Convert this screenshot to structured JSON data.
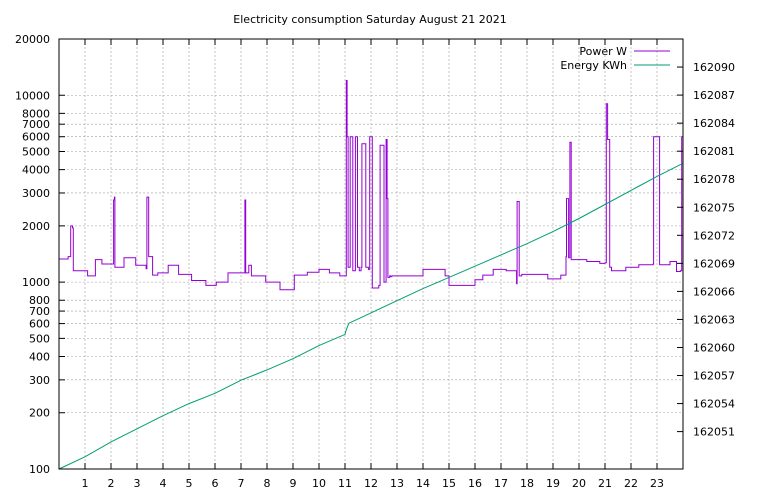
{
  "chart_data": {
    "type": "line",
    "title": "Electricity consumption Saturday August 21 2021",
    "xlabel": "",
    "ylabel": "",
    "y2label": "",
    "grid": true,
    "legend_position": "top-right",
    "xlim": [
      0,
      24
    ],
    "ylim": [
      100,
      20000
    ],
    "y_scale": "log",
    "y2lim": [
      162047,
      162093
    ],
    "x_ticks": [
      1,
      2,
      3,
      4,
      5,
      6,
      7,
      8,
      9,
      10,
      11,
      12,
      13,
      14,
      15,
      16,
      17,
      18,
      19,
      20,
      21,
      22,
      23
    ],
    "x_tick_labels": [
      "1",
      "2",
      "3",
      "4",
      "5",
      "6",
      "7",
      "8",
      "9",
      "10",
      "11",
      "12",
      "13",
      "14",
      "15",
      "16",
      "17",
      "18",
      "19",
      "20",
      "21",
      "22",
      "23"
    ],
    "y_ticks": [
      100,
      200,
      300,
      400,
      500,
      600,
      700,
      800,
      1000,
      2000,
      3000,
      4000,
      5000,
      6000,
      7000,
      8000,
      10000,
      20000
    ],
    "y_tick_labels": [
      "100",
      "200",
      "300",
      "400",
      "500",
      "600",
      "700",
      "800",
      "1000",
      "2000",
      "3000",
      "4000",
      "5000",
      "6000",
      "7000",
      "8000",
      "10000",
      "20000"
    ],
    "y2_ticks": [
      162051,
      162054,
      162057,
      162060,
      162063,
      162066,
      162069,
      162072,
      162075,
      162078,
      162081,
      162084,
      162087,
      162090
    ],
    "y2_tick_labels": [
      "162051",
      "162054",
      "162057",
      "162060",
      "162063",
      "162066",
      "162069",
      "162072",
      "162075",
      "162078",
      "162081",
      "162084",
      "162087",
      "162090"
    ],
    "series": [
      {
        "name": "Power W",
        "axis": "y",
        "color": "#9400d3",
        "step": true,
        "x": [
          0,
          0.35,
          0.45,
          0.52,
          0.55,
          1.1,
          1.4,
          1.65,
          2.05,
          2.1,
          2.13,
          2.15,
          2.5,
          2.95,
          3.35,
          3.38,
          3.45,
          3.6,
          3.8,
          4.2,
          4.6,
          5.1,
          5.65,
          6.05,
          6.5,
          7.15,
          7.18,
          7.3,
          7.4,
          7.95,
          8.5,
          9.05,
          9.55,
          10.0,
          10.4,
          10.8,
          11.05,
          11.08,
          11.12,
          11.2,
          11.3,
          11.4,
          11.48,
          11.55,
          11.62,
          11.65,
          11.8,
          11.9,
          11.95,
          12.05,
          12.3,
          12.35,
          12.5,
          12.58,
          12.62,
          12.65,
          12.72,
          12.75,
          12.8,
          12.85,
          14.0,
          14.85,
          15.0,
          15.75,
          16.0,
          16.3,
          16.7,
          17.2,
          17.6,
          17.62,
          17.7,
          17.8,
          18.8,
          19.3,
          19.5,
          19.52,
          19.6,
          19.65,
          19.7,
          20.3,
          20.8,
          21.0,
          21.05,
          21.1,
          21.18,
          21.25,
          21.8,
          22.3,
          22.85,
          22.87,
          23.1,
          23.5,
          23.75,
          23.9,
          23.95,
          24.0
        ],
        "values": [
          1330,
          1370,
          2000,
          1950,
          1150,
          1080,
          1320,
          1250,
          1250,
          2750,
          2850,
          1200,
          1350,
          1230,
          1180,
          2850,
          1370,
          1090,
          1120,
          1230,
          1100,
          1020,
          960,
          1000,
          1120,
          2750,
          1120,
          1230,
          1080,
          1000,
          910,
          1090,
          1130,
          1170,
          1120,
          1080,
          12000,
          6000,
          1200,
          6000,
          1150,
          6000,
          1200,
          1150,
          1200,
          5500,
          1200,
          1170,
          6000,
          930,
          960,
          5400,
          1000,
          5800,
          2800,
          1060,
          1080,
          1070,
          1080,
          1080,
          1170,
          1080,
          960,
          960,
          1030,
          1090,
          1170,
          1150,
          980,
          2700,
          1080,
          1100,
          1040,
          1090,
          1370,
          2800,
          1350,
          5600,
          1320,
          1290,
          1260,
          1270,
          9000,
          5800,
          1200,
          1150,
          1200,
          1240,
          1250,
          6000,
          1240,
          1290,
          1140,
          1150,
          6000,
          1220
        ]
      },
      {
        "name": "Energy KWh",
        "axis": "y2",
        "color": "#009e73",
        "step": false,
        "x": [
          0,
          1,
          2,
          3,
          4,
          5,
          6,
          7,
          8,
          9,
          10,
          11,
          11.05,
          11.15,
          12,
          13,
          14,
          15,
          16,
          17,
          18,
          19,
          20,
          21,
          22,
          23,
          24
        ],
        "values": [
          162047.0,
          162048.3,
          162049.9,
          162051.3,
          162052.7,
          162054.0,
          162055.1,
          162056.5,
          162057.6,
          162058.8,
          162060.2,
          162061.4,
          162061.9,
          162062.6,
          162063.7,
          162065.0,
          162066.3,
          162067.5,
          162068.7,
          162069.9,
          162071.1,
          162072.4,
          162073.8,
          162075.3,
          162076.8,
          162078.3,
          162079.7
        ]
      }
    ]
  }
}
